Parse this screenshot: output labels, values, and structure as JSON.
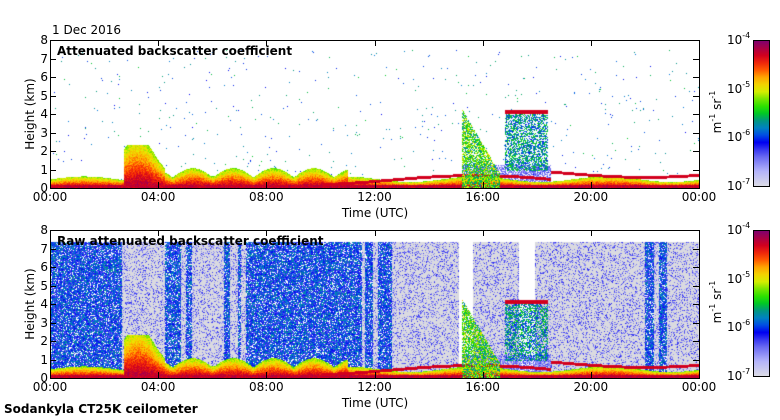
{
  "date": "1 Dec 2016",
  "footer": "Sodankyla CT25K ceilometer",
  "chart_data": [
    {
      "type": "heatmap",
      "title": "Attenuated backscatter coefficient",
      "xlabel": "Time (UTC)",
      "ylabel": "Height (km)",
      "xlim_hours": [
        0,
        24
      ],
      "ylim": [
        0,
        8
      ],
      "xticks": [
        "00:00",
        "04:00",
        "08:00",
        "12:00",
        "16:00",
        "20:00",
        "00:00"
      ],
      "yticks": [
        "0",
        "1",
        "2",
        "3",
        "4",
        "5",
        "6",
        "7",
        "8"
      ],
      "colorbar": {
        "scale": "log",
        "range": [
          1e-07,
          0.0001
        ],
        "tick_base": "10",
        "tick_exponents": [
          "-7",
          "-6",
          "-5",
          "-4"
        ],
        "unit_parts": [
          "m",
          "-1",
          "sr",
          "-1"
        ]
      },
      "features": [
        {
          "name": "boundary layer",
          "time_start_h": 0,
          "time_end_h": 24,
          "top_km": 0.5
        },
        {
          "name": "aerosol plume",
          "time_start_h": 2.7,
          "time_end_h": 4.2,
          "top_km": 2.3
        },
        {
          "name": "cloud layer",
          "time_start_h": 16.8,
          "time_end_h": 18.4,
          "base_km": 4.1,
          "bottom_km": 1.0
        },
        {
          "name": "precipitation column",
          "time_start_h": 15.2,
          "time_end_h": 16.5,
          "top_km": 4.3
        },
        {
          "name": "low cloud",
          "time_start_h": 18.5,
          "time_end_h": 24,
          "height_km": 0.9
        }
      ]
    },
    {
      "type": "heatmap",
      "title": "Raw attenuated backscatter coefficient",
      "xlabel": "Time (UTC)",
      "ylabel": "Height (km)",
      "xlim_hours": [
        0,
        24
      ],
      "ylim": [
        0,
        8
      ],
      "xticks": [
        "00:00",
        "04:00",
        "08:00",
        "12:00",
        "16:00",
        "20:00",
        "00:00"
      ],
      "yticks": [
        "0",
        "1",
        "2",
        "3",
        "4",
        "5",
        "6",
        "7",
        "8"
      ],
      "colorbar": {
        "scale": "log",
        "range": [
          1e-07,
          0.0001
        ],
        "tick_base": "10",
        "tick_exponents": [
          "-7",
          "-6",
          "-5",
          "-4"
        ],
        "unit_parts": [
          "m",
          "-1",
          "sr",
          "-1"
        ]
      },
      "noisy_bands_hours": [
        [
          0,
          2.6
        ],
        [
          4.2,
          4.8
        ],
        [
          5.0,
          5.2
        ],
        [
          6.4,
          6.6
        ],
        [
          6.9,
          7.0
        ],
        [
          7.2,
          9.1
        ],
        [
          9.1,
          11.5
        ],
        [
          11.6,
          11.9
        ],
        [
          12.1,
          12.6
        ],
        [
          22.0,
          22.3
        ],
        [
          22.5,
          22.8
        ]
      ]
    }
  ]
}
